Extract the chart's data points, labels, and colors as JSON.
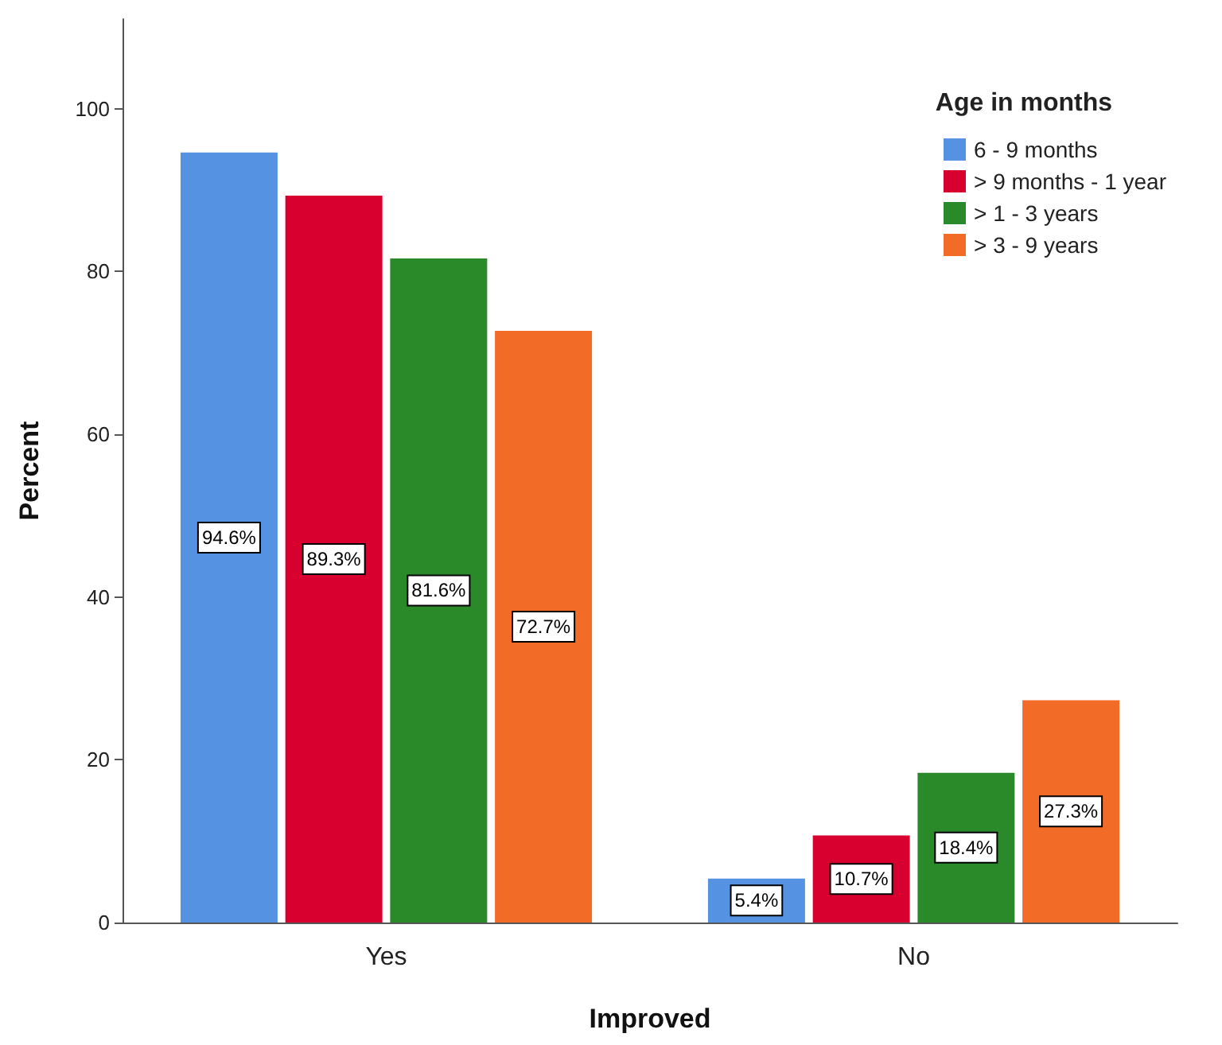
{
  "chart_data": {
    "type": "bar",
    "xlabel": "Improved",
    "ylabel": "Percent",
    "legend_title": "Age in months",
    "categories": [
      "Yes",
      "No"
    ],
    "series": [
      {
        "name": "6 - 9 months",
        "color": "#5592e2",
        "values": [
          94.6,
          5.4
        ],
        "value_labels": [
          "94.6%",
          "5.4%"
        ]
      },
      {
        "name": "> 9 months - 1 year",
        "color": "#d8002e",
        "values": [
          89.3,
          10.7
        ],
        "value_labels": [
          "89.3%",
          "10.7%"
        ]
      },
      {
        "name": "> 1 - 3 years",
        "color": "#2a8a2a",
        "values": [
          81.6,
          18.4
        ],
        "value_labels": [
          "81.6%",
          "18.4%"
        ]
      },
      {
        "name": "> 3 - 9 years",
        "color": "#f26b27",
        "values": [
          72.7,
          27.3
        ],
        "value_labels": [
          "72.7%",
          "27.3%"
        ]
      }
    ],
    "ylim": [
      0,
      111
    ],
    "yticks": [
      0,
      20,
      40,
      60,
      80,
      100
    ],
    "grid": false,
    "legend": "top right"
  }
}
